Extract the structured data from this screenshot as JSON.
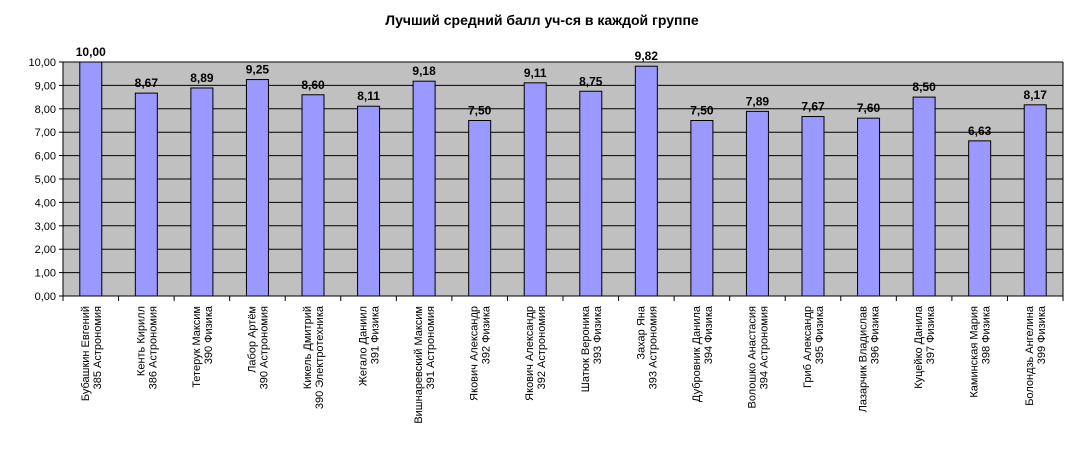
{
  "chart_data": {
    "type": "bar",
    "title": "Лучший средний балл уч-ся в каждой группе",
    "categories": [
      [
        "Бубашкин Евгений",
        "385 Астрономия"
      ],
      [
        "Кенть Кирилл",
        "386 Астрономия"
      ],
      [
        "Тетерук Максим",
        "390 Физика"
      ],
      [
        "Лабор Артём",
        "390 Астрономия"
      ],
      [
        "Кикель Дмитрий",
        "390 Электротехника"
      ],
      [
        "Жегало Даниил",
        "391 Физика"
      ],
      [
        "Вишнаревский Максим",
        "391 Астрономия"
      ],
      [
        "Якович Александр",
        "392 Физика"
      ],
      [
        "Якович Александр",
        "392 Астрономия"
      ],
      [
        "Шатюк Вероника",
        "393 Физика"
      ],
      [
        "Захар Яна",
        "393 Астрономия"
      ],
      [
        "Дубровник Данила",
        "394 Физика"
      ],
      [
        "Волошко Анастасия",
        "394 Астрономия"
      ],
      [
        "Гриб Александр",
        "395 Физика"
      ],
      [
        "Лазарчик Владислав",
        "396 Физика"
      ],
      [
        "Куцейко Данила",
        "397 Физика"
      ],
      [
        "Каминская Мария",
        "398 Физика"
      ],
      [
        "Болондзь Ангелина",
        "399 Физика"
      ]
    ],
    "values": [
      10.0,
      8.67,
      8.89,
      9.25,
      8.6,
      8.11,
      9.18,
      7.5,
      9.11,
      8.75,
      9.82,
      7.5,
      7.89,
      7.67,
      7.6,
      8.5,
      6.63,
      8.17
    ],
    "data_labels": [
      "10,00",
      "8,67",
      "8,89",
      "9,25",
      "8,60",
      "8,11",
      "9,18",
      "7,50",
      "9,11",
      "8,75",
      "9,82",
      "7,50",
      "7,89",
      "7,67",
      "7,60",
      "8,50",
      "6,63",
      "8,17"
    ],
    "y_ticks": [
      "0,00",
      "1,00",
      "2,00",
      "3,00",
      "4,00",
      "5,00",
      "6,00",
      "7,00",
      "8,00",
      "9,00",
      "10,00"
    ],
    "ylim": [
      0,
      10
    ],
    "grid": true,
    "legend": "none",
    "colors": {
      "bar": "#9999ff",
      "bar_stroke": "#000000",
      "plot_bg": "#c0c0c0",
      "grid": "#000000"
    }
  }
}
